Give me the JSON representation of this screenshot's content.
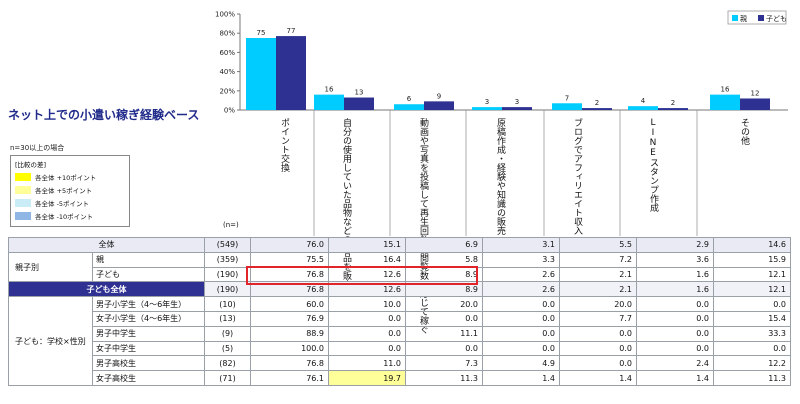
{
  "title": "ネット上での小遣い稼ぎ経験ベース",
  "note": "n=30以上の場合",
  "diff_legend": {
    "title": "[比較の差]",
    "items": [
      {
        "label": "各全体  +10ポイント",
        "color": "#ffff00"
      },
      {
        "label": "各全体   +5ポイント",
        "color": "#ffff99"
      },
      {
        "label": "各全体   -5ポイント",
        "color": "#c9ecf7"
      },
      {
        "label": "各全体  -10ポイント",
        "color": "#8fb6e4"
      }
    ]
  },
  "n_header": "(n=)",
  "table": {
    "rows": [
      {
        "group": "",
        "label": "全体",
        "n": "(549)",
        "values": [
          "76.0",
          "15.1",
          "6.9",
          "3.1",
          "5.5",
          "2.9",
          "14.6"
        ]
      },
      {
        "group": "親子別",
        "label": "親",
        "n": "(359)",
        "values": [
          "75.5",
          "16.4",
          "5.8",
          "3.3",
          "7.2",
          "3.6",
          "15.9"
        ]
      },
      {
        "group": "",
        "label": "子ども",
        "n": "(190)",
        "values": [
          "76.8",
          "12.6",
          "8.9",
          "2.6",
          "2.1",
          "1.6",
          "12.1"
        ]
      },
      {
        "group": "",
        "label": "子ども全体",
        "n": "(190)",
        "values": [
          "76.8",
          "12.6",
          "8.9",
          "2.6",
          "2.1",
          "1.6",
          "12.1"
        ]
      },
      {
        "group": "子ども：学校×性別",
        "label": "男子小学生（4～6年生）",
        "n": "(10)",
        "values": [
          "60.0",
          "10.0",
          "20.0",
          "0.0",
          "20.0",
          "0.0",
          "0.0"
        ]
      },
      {
        "group": "",
        "label": "女子小学生（4～6年生）",
        "n": "(13)",
        "values": [
          "76.9",
          "0.0",
          "0.0",
          "0.0",
          "7.7",
          "0.0",
          "15.4"
        ]
      },
      {
        "group": "",
        "label": "男子中学生",
        "n": "(9)",
        "values": [
          "88.9",
          "0.0",
          "11.1",
          "0.0",
          "0.0",
          "0.0",
          "33.3"
        ]
      },
      {
        "group": "",
        "label": "女子中学生",
        "n": "(5)",
        "values": [
          "100.0",
          "0.0",
          "0.0",
          "0.0",
          "0.0",
          "0.0",
          "0.0"
        ]
      },
      {
        "group": "",
        "label": "男子高校生",
        "n": "(82)",
        "values": [
          "76.8",
          "11.0",
          "7.3",
          "4.9",
          "0.0",
          "2.4",
          "12.2"
        ]
      },
      {
        "group": "",
        "label": "女子高校生",
        "n": "(71)",
        "values": [
          "76.1",
          "19.7",
          "11.3",
          "1.4",
          "1.4",
          "1.4",
          "11.3"
        ]
      }
    ]
  },
  "chart_data": {
    "type": "bar",
    "categories": [
      "ポイント交換",
      "自分の使用していた品物などの物品を販売",
      "動画や写真を投稿して再生回数・閲覧数に応じて稼ぐ",
      "原稿作成・経験や知識の販売",
      "ブログでアフィリエイト収入",
      "LINEスタンプ作成",
      "その他"
    ],
    "series": [
      {
        "name": "親",
        "values": [
          75,
          16,
          6,
          3,
          7,
          4,
          16
        ],
        "color": "#00ccff"
      },
      {
        "name": "子ども",
        "values": [
          77,
          13,
          9,
          3,
          2,
          2,
          12
        ],
        "color": "#2e3192"
      }
    ],
    "ylim": [
      0,
      100
    ],
    "yticks": [
      "0%",
      "20%",
      "40%",
      "60%",
      "80%",
      "100%"
    ],
    "legend_position": "top-right",
    "grid": false
  }
}
